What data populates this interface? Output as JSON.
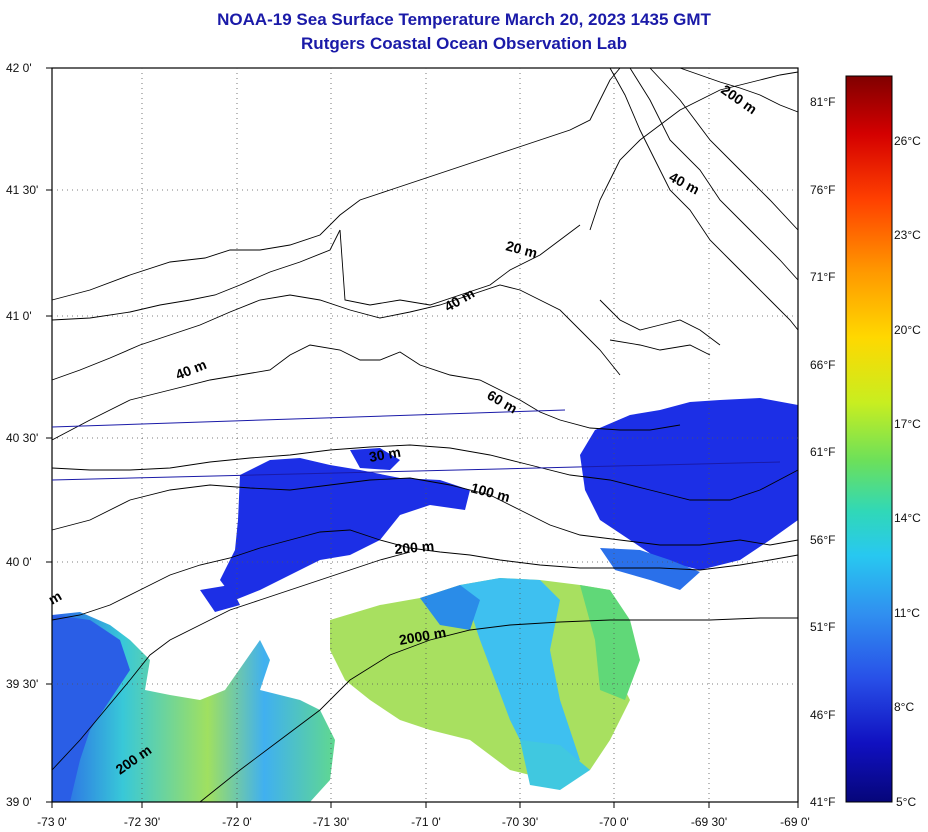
{
  "title": {
    "line1": "NOAA-19 Sea Surface Temperature March 20, 2023 1435 GMT",
    "line2": "Rutgers Coastal Ocean Observation Lab"
  },
  "lat_labels": [
    "42 0'",
    "41 30'",
    "41 0'",
    "40 30'",
    "40 0'",
    "39 30'",
    "39 0'"
  ],
  "lon_labels": [
    "-73 0'",
    "-72 30'",
    "-72 0'",
    "-71 30'",
    "-71 0'",
    "-70 30'",
    "-70 0'",
    "-69 30'",
    "-69 0'"
  ],
  "fahrenheit_labels": [
    "81°F",
    "76°F",
    "71°F",
    "66°F",
    "61°F",
    "56°F",
    "51°F",
    "46°F",
    "41°F"
  ],
  "celsius_labels": [
    "26°C",
    "23°C",
    "20°C",
    "17°C",
    "14°C",
    "11°C",
    "8°C",
    "5°C"
  ],
  "contour_labels": [
    "200 m",
    "40 m",
    "20 m",
    "40 m",
    "40 m",
    "60 m",
    "30 m",
    "100 m",
    "200 m",
    "2000 m",
    "200 m",
    "m"
  ],
  "colors": {
    "frame": "#000000",
    "land_line": "#000000",
    "track_line": "#1a1aa8",
    "cold_sst": "#1c2fe6",
    "mid_sst": "#38d4e0",
    "warm_sst": "#c8e83a"
  },
  "colorbar": {
    "range_c": [
      5,
      28
    ],
    "stops": [
      "#800000",
      "#d40000",
      "#ff4000",
      "#ff9900",
      "#ffd800",
      "#c8ee20",
      "#6ce05a",
      "#30d8b8",
      "#28c8f0",
      "#3090f0",
      "#2850e8",
      "#1010c0",
      "#06067a"
    ]
  }
}
